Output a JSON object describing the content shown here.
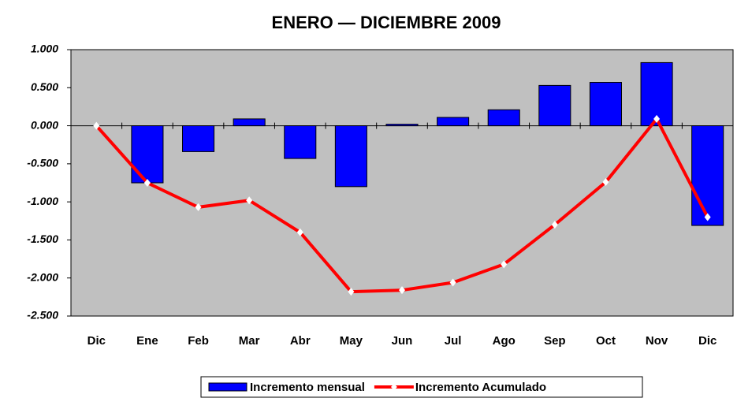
{
  "chart_data": {
    "type": "bar-line",
    "title": "ENERO — DICIEMBRE 2009",
    "categories": [
      "Dic",
      "Ene",
      "Feb",
      "Mar",
      "Abr",
      "May",
      "Jun",
      "Jul",
      "Ago",
      "Sep",
      "Oct",
      "Nov",
      "Dic"
    ],
    "series": [
      {
        "name": "Incremento mensual",
        "type": "bar",
        "color": "#0000ff",
        "values": [
          null,
          -0.75,
          -0.34,
          0.09,
          -0.43,
          -0.8,
          0.02,
          0.11,
          0.21,
          0.53,
          0.57,
          0.83,
          -1.31
        ]
      },
      {
        "name": "Incremento Acumulado",
        "type": "line",
        "color": "#ff0000",
        "values": [
          0,
          -0.75,
          -1.07,
          -0.98,
          -1.4,
          -2.18,
          -2.16,
          -2.06,
          -1.82,
          -1.3,
          -0.74,
          0.09,
          -1.2
        ]
      }
    ],
    "ylim": [
      -2.5,
      1
    ],
    "yticks": [
      {
        "value": -2.5,
        "label": "-2.500"
      },
      {
        "value": -2,
        "label": "-2.000"
      },
      {
        "value": -1.5,
        "label": "-1.500"
      },
      {
        "value": -1,
        "label": "-1.000"
      },
      {
        "value": -0.5,
        "label": "-0.500"
      },
      {
        "value": 0,
        "label": "0.000"
      },
      {
        "value": 0.5,
        "label": "0.500"
      },
      {
        "value": 1,
        "label": "1.000"
      }
    ],
    "grid": false,
    "legend": "bottom"
  }
}
